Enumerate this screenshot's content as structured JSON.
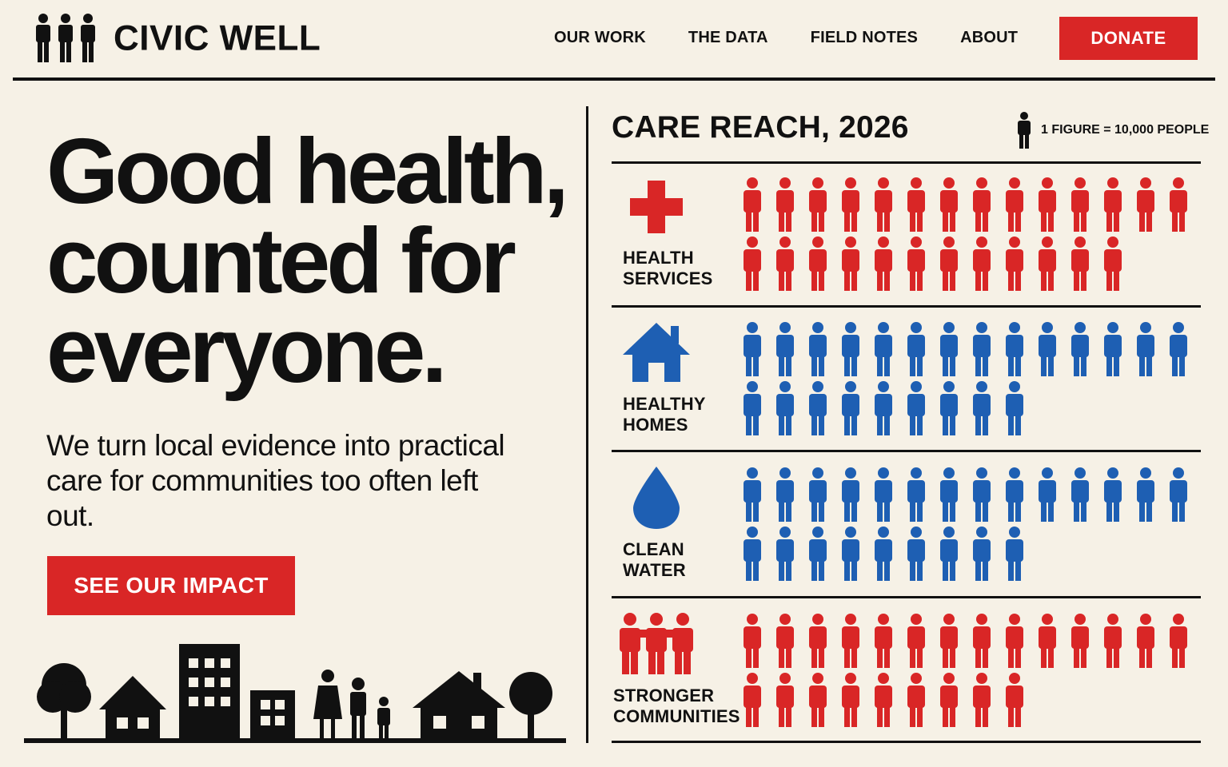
{
  "header": {
    "brand": "CIVIC WELL",
    "nav": [
      "OUR WORK",
      "THE DATA",
      "FIELD NOTES",
      "ABOUT"
    ],
    "donate_label": "DONATE"
  },
  "hero": {
    "headline": "Good health, counted for everyone.",
    "subtext": "We turn local evidence into practical care for communities too often left out.",
    "cta_label": "SEE OUR IMPACT"
  },
  "colors": {
    "accent_red": "#d92626",
    "accent_blue": "#1e5fb3",
    "ink": "#111111",
    "paper": "#f6f1e6"
  },
  "chart_data": {
    "type": "pictogram",
    "title": "CARE REACH, 2026",
    "legend": "1 FIGURE = 10,000 PEOPLE",
    "unit_per_figure": 10000,
    "series": [
      {
        "name": "HEALTH SERVICES",
        "label_lines": [
          "HEALTH",
          "SERVICES"
        ],
        "icon": "medical-cross-icon",
        "figures": 26,
        "color": "#d92626"
      },
      {
        "name": "HEALTHY HOMES",
        "label_lines": [
          "HEALTHY",
          "HOMES"
        ],
        "icon": "house-icon",
        "figures": 23,
        "color": "#1e5fb3"
      },
      {
        "name": "CLEAN WATER",
        "label_lines": [
          "CLEAN",
          "WATER"
        ],
        "icon": "water-drop-icon",
        "figures": 23,
        "color": "#1e5fb3"
      },
      {
        "name": "STRONGER COMMUNITIES",
        "label_lines": [
          "STRONGER",
          "COMMUNITIES"
        ],
        "icon": "community-group-icon",
        "figures": 23,
        "color": "#d92626"
      }
    ]
  }
}
